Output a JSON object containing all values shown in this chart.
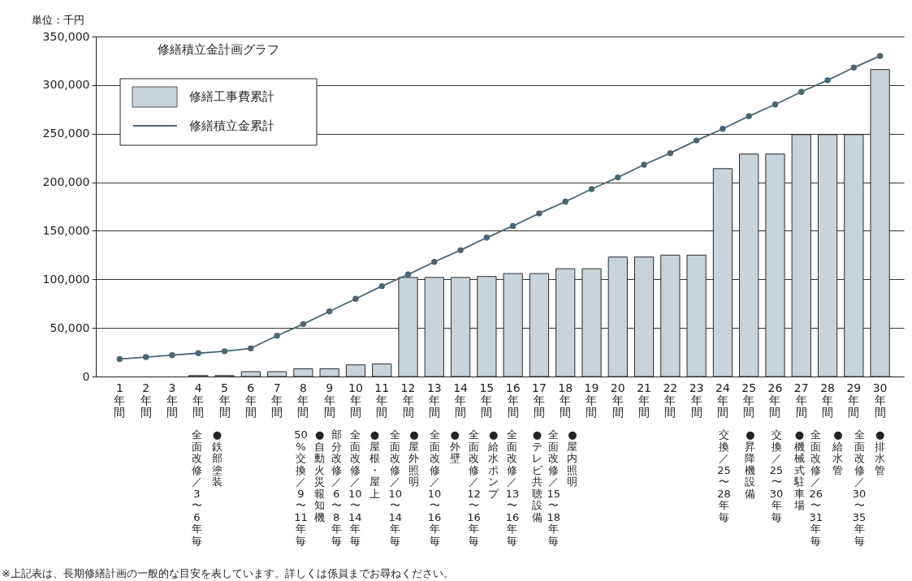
{
  "chart_data": {
    "type": "bar",
    "title": "修繕積立金計画グラフ",
    "ylabel": "単位：千円",
    "categories": [
      "1年間",
      "2年間",
      "3年間",
      "4年間",
      "5年間",
      "6年間",
      "7年間",
      "8年間",
      "9年間",
      "10年間",
      "11年間",
      "12年間",
      "13年間",
      "14年間",
      "15年間",
      "16年間",
      "17年間",
      "18年間",
      "19年間",
      "20年間",
      "21年間",
      "22年間",
      "23年間",
      "24年間",
      "25年間",
      "26年間",
      "27年間",
      "28年間",
      "29年間",
      "30年間"
    ],
    "series": [
      {
        "name": "修繕工事費累計",
        "color": "#c8d3da",
        "values": [
          null,
          null,
          null,
          1000,
          1000,
          5000,
          5000,
          8000,
          8000,
          12000,
          13000,
          102000,
          102000,
          102000,
          103000,
          106000,
          106000,
          111000,
          111000,
          123000,
          123000,
          125000,
          125000,
          214000,
          229000,
          229000,
          249000,
          249000,
          249000,
          316000
        ]
      },
      {
        "name": "修繕積立金累計",
        "type": "line",
        "color": "#4a6573",
        "values": [
          18000,
          20000,
          22000,
          24000,
          26000,
          29000,
          42000,
          54000,
          67000,
          80000,
          93000,
          105000,
          118000,
          130000,
          143000,
          155000,
          168000,
          180000,
          193000,
          205000,
          218000,
          230000,
          243000,
          255000,
          268000,
          280000,
          293000,
          305000,
          318000,
          330000
        ]
      }
    ],
    "ylim": [
      0,
      350000
    ],
    "yticks": [
      0,
      {
        "value": 50000,
        "label": "50,000"
      },
      {
        "value": 100000,
        "label": "100,000"
      },
      {
        "value": 150000,
        "label": "150,000"
      },
      {
        "value": 200000,
        "label": "200,000"
      },
      {
        "value": 250000,
        "label": "250,000"
      },
      {
        "value": 300000,
        "label": "300,000"
      },
      {
        "value": 350000,
        "label": "350,000"
      }
    ],
    "grid": "y",
    "legend": "top left",
    "marker": "circle",
    "annotations": [
      "全面改修／3〜6年毎",
      "●鉄部塗装",
      "50%交換／9〜11年毎",
      "●自動火災報知機",
      "部分改修／6〜8年毎",
      "全面改修／10〜14年毎",
      "●屋根・屋上",
      "全面改修／10〜14年毎",
      "●屋外照明",
      "全面改修／10〜16年毎",
      "●外壁",
      "全面改修／12〜16年毎",
      "●給水ポンプ",
      "全面改修／13〜16年毎",
      "●テレビ共聴設備",
      "全面改修／15〜18年毎",
      "●屋内照明",
      "交換／25〜28年毎",
      "●昇降機設備",
      "交換／25〜30年毎",
      "●機械式駐車場",
      "全面改修／26〜31年毎",
      "●給水管",
      "全面改修／30〜35年毎",
      "●排水管",
      "※上記表は、長期修繕計画の一般的な目安を表しています。詳しくは係員までお尋ねください。"
    ]
  }
}
